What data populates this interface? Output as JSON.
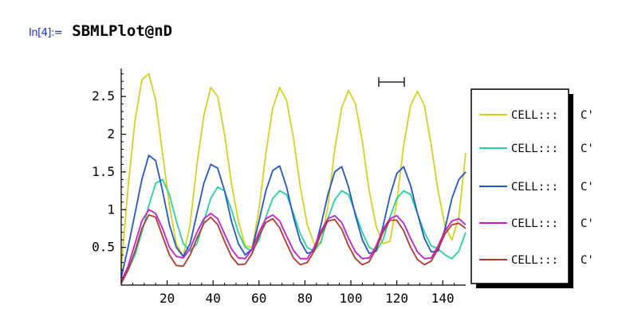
{
  "notebook": {
    "input_label": "In[4]:=",
    "input_command": "SBMLPlot@nD"
  },
  "chart_data": {
    "type": "line",
    "xlim": [
      0,
      150
    ],
    "ylim": [
      0,
      2.85
    ],
    "x_ticks": [
      20,
      40,
      60,
      80,
      100,
      120,
      140
    ],
    "x_tick_labels": [
      "20",
      "40",
      "60",
      "80",
      "100",
      "120",
      "140"
    ],
    "y_ticks": [
      0.5,
      1,
      1.5,
      2,
      2.5
    ],
    "y_tick_labels": [
      "0.5",
      "1",
      "1.5",
      "2",
      "2.5"
    ],
    "grid": false,
    "legend_position": "right",
    "legend_suffix": "C'",
    "series": [
      {
        "name": "CELL:::",
        "color": "#d6d11f",
        "x": [
          0,
          3,
          6,
          9,
          12,
          15,
          18,
          21,
          24,
          27,
          30,
          33,
          36,
          39,
          42,
          45,
          48,
          51,
          54,
          57,
          60,
          63,
          66,
          69,
          72,
          75,
          78,
          81,
          84,
          87,
          90,
          93,
          96,
          99,
          102,
          105,
          108,
          111,
          114,
          117,
          120,
          123,
          126,
          129,
          132,
          135,
          138,
          141,
          144,
          147,
          150
        ],
        "y": [
          0.2,
          1.3,
          2.18,
          2.72,
          2.8,
          2.45,
          1.75,
          1.05,
          0.55,
          0.38,
          0.8,
          1.6,
          2.25,
          2.62,
          2.5,
          2.0,
          1.35,
          0.85,
          0.52,
          0.5,
          1.0,
          1.75,
          2.35,
          2.62,
          2.45,
          1.95,
          1.3,
          0.8,
          0.55,
          0.55,
          1.05,
          1.8,
          2.35,
          2.58,
          2.4,
          1.9,
          1.25,
          0.78,
          0.55,
          0.58,
          1.1,
          1.85,
          2.38,
          2.57,
          2.38,
          1.85,
          1.25,
          0.78,
          0.6,
          0.9,
          1.75
        ]
      },
      {
        "name": "CELL:::",
        "color": "#28d39a",
        "x": [
          0,
          3,
          6,
          9,
          12,
          15,
          18,
          21,
          24,
          27,
          30,
          33,
          36,
          39,
          42,
          45,
          48,
          51,
          54,
          57,
          60,
          63,
          66,
          69,
          72,
          75,
          78,
          81,
          84,
          87,
          90,
          93,
          96,
          99,
          102,
          105,
          108,
          111,
          114,
          117,
          120,
          123,
          126,
          129,
          132,
          135,
          138,
          141,
          144,
          147,
          150
        ],
        "y": [
          0.05,
          0.2,
          0.4,
          0.7,
          1.05,
          1.35,
          1.4,
          1.2,
          0.85,
          0.55,
          0.45,
          0.55,
          0.85,
          1.15,
          1.3,
          1.25,
          1.0,
          0.7,
          0.5,
          0.45,
          0.6,
          0.9,
          1.15,
          1.25,
          1.2,
          0.95,
          0.68,
          0.5,
          0.45,
          0.58,
          0.88,
          1.13,
          1.25,
          1.2,
          0.95,
          0.7,
          0.5,
          0.45,
          0.6,
          0.9,
          1.15,
          1.25,
          1.2,
          0.95,
          0.7,
          0.52,
          0.48,
          0.4,
          0.35,
          0.45,
          0.7
        ]
      },
      {
        "name": "CELL:::",
        "color": "#2456c8",
        "x": [
          0,
          3,
          6,
          9,
          12,
          15,
          18,
          21,
          24,
          27,
          30,
          33,
          36,
          39,
          42,
          45,
          48,
          51,
          54,
          57,
          60,
          63,
          66,
          69,
          72,
          75,
          78,
          81,
          84,
          87,
          90,
          93,
          96,
          99,
          102,
          105,
          108,
          111,
          114,
          117,
          120,
          123,
          126,
          129,
          132,
          135,
          138,
          141,
          144,
          147,
          150
        ],
        "y": [
          0.1,
          0.5,
          0.95,
          1.4,
          1.72,
          1.65,
          1.25,
          0.8,
          0.5,
          0.38,
          0.55,
          0.95,
          1.35,
          1.6,
          1.55,
          1.25,
          0.85,
          0.55,
          0.4,
          0.48,
          0.85,
          1.25,
          1.52,
          1.58,
          1.3,
          0.9,
          0.58,
          0.42,
          0.45,
          0.8,
          1.2,
          1.5,
          1.57,
          1.3,
          0.92,
          0.6,
          0.42,
          0.45,
          0.78,
          1.18,
          1.48,
          1.57,
          1.32,
          0.95,
          0.62,
          0.44,
          0.45,
          0.75,
          1.15,
          1.4,
          1.5
        ]
      },
      {
        "name": "CELL:::",
        "color": "#c41fd0",
        "x": [
          0,
          3,
          6,
          9,
          12,
          15,
          18,
          21,
          24,
          27,
          30,
          33,
          36,
          39,
          42,
          45,
          48,
          51,
          54,
          57,
          60,
          63,
          66,
          69,
          72,
          75,
          78,
          81,
          84,
          87,
          90,
          93,
          96,
          99,
          102,
          105,
          108,
          111,
          114,
          117,
          120,
          123,
          126,
          129,
          132,
          135,
          138,
          141,
          144,
          147,
          150
        ],
        "y": [
          0.05,
          0.25,
          0.55,
          0.85,
          1.0,
          0.95,
          0.75,
          0.5,
          0.38,
          0.36,
          0.48,
          0.7,
          0.88,
          0.95,
          0.88,
          0.68,
          0.48,
          0.36,
          0.35,
          0.48,
          0.7,
          0.88,
          0.93,
          0.85,
          0.65,
          0.46,
          0.35,
          0.35,
          0.5,
          0.72,
          0.88,
          0.92,
          0.83,
          0.62,
          0.44,
          0.35,
          0.36,
          0.52,
          0.74,
          0.88,
          0.92,
          0.82,
          0.62,
          0.44,
          0.35,
          0.36,
          0.52,
          0.72,
          0.85,
          0.88,
          0.8
        ]
      },
      {
        "name": "CELL:::",
        "color": "#b03a2c",
        "x": [
          0,
          3,
          6,
          9,
          12,
          15,
          18,
          21,
          24,
          27,
          30,
          33,
          36,
          39,
          42,
          45,
          48,
          51,
          54,
          57,
          60,
          63,
          66,
          69,
          72,
          75,
          78,
          81,
          84,
          87,
          90,
          93,
          96,
          99,
          102,
          105,
          108,
          111,
          114,
          117,
          120,
          123,
          126,
          129,
          132,
          135,
          138,
          141,
          144,
          147,
          150
        ],
        "y": [
          0.02,
          0.2,
          0.45,
          0.75,
          0.93,
          0.9,
          0.65,
          0.4,
          0.26,
          0.25,
          0.4,
          0.62,
          0.82,
          0.9,
          0.8,
          0.58,
          0.38,
          0.27,
          0.28,
          0.42,
          0.65,
          0.83,
          0.88,
          0.76,
          0.55,
          0.36,
          0.27,
          0.3,
          0.45,
          0.68,
          0.85,
          0.87,
          0.74,
          0.52,
          0.35,
          0.27,
          0.31,
          0.48,
          0.7,
          0.86,
          0.86,
          0.72,
          0.5,
          0.34,
          0.27,
          0.32,
          0.48,
          0.68,
          0.8,
          0.82,
          0.75
        ]
      }
    ]
  }
}
